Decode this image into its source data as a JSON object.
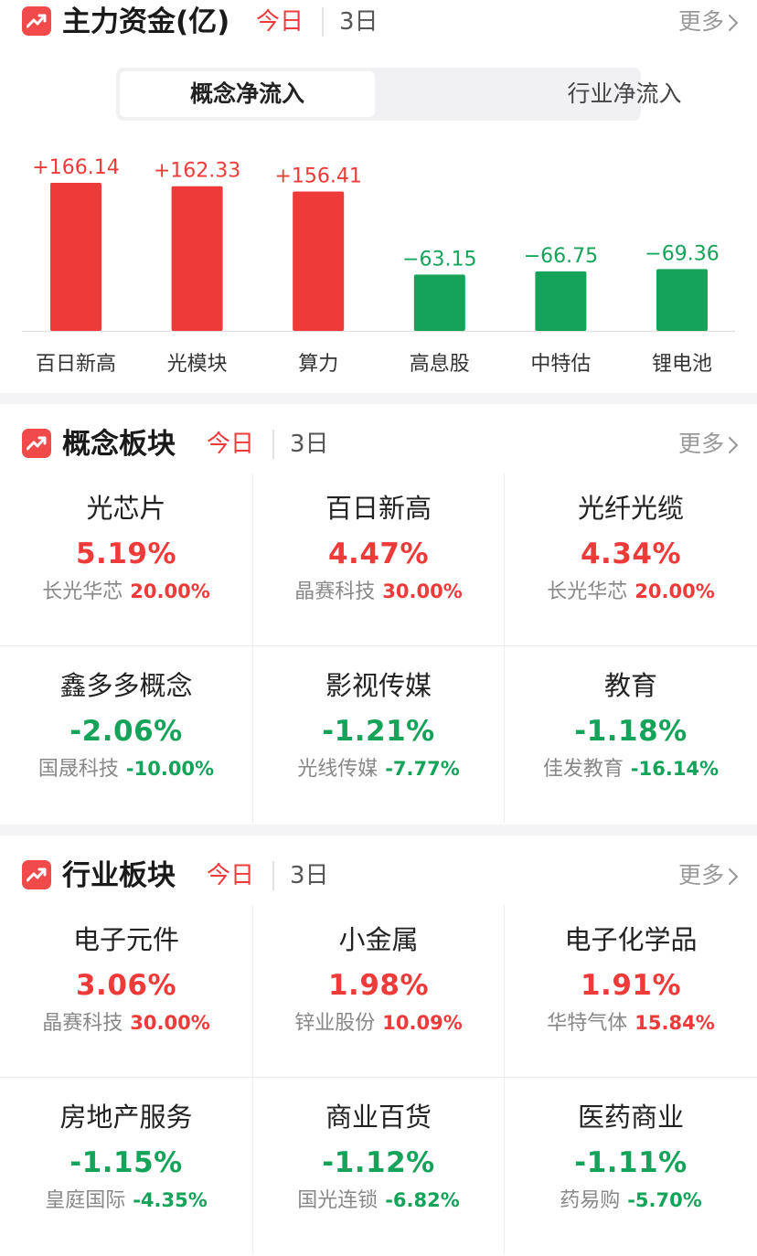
{
  "colors": {
    "up": "#ef3a3a",
    "down": "#15a35a",
    "accent": "#f04a4a"
  },
  "fund_flow": {
    "title": "主力资金(亿)",
    "tab_today": "今日",
    "tab_3d": "3日",
    "more": "更多",
    "icon": "trend-up-icon",
    "segment": {
      "active": "概念净流入",
      "inactive": "行业净流入"
    }
  },
  "chart_data": {
    "type": "bar",
    "categories": [
      "百日新高",
      "光模块",
      "算力",
      "高息股",
      "中特估",
      "锂电池"
    ],
    "values": [
      166.14,
      162.33,
      156.41,
      -63.15,
      -66.75,
      -69.36
    ],
    "labels": [
      "+166.14",
      "+162.33",
      "+156.41",
      "−63.15",
      "−66.75",
      "−69.36"
    ]
  },
  "concept": {
    "title": "概念板块",
    "tab_today": "今日",
    "tab_3d": "3日",
    "more": "更多",
    "icon": "trend-up-icon",
    "items": [
      {
        "name": "光芯片",
        "pct": "5.19%",
        "stock": "长光华芯",
        "chg": "20.00%",
        "dir": "up"
      },
      {
        "name": "百日新高",
        "pct": "4.47%",
        "stock": "晶赛科技",
        "chg": "30.00%",
        "dir": "up"
      },
      {
        "name": "光纤光缆",
        "pct": "4.34%",
        "stock": "长光华芯",
        "chg": "20.00%",
        "dir": "up"
      },
      {
        "name": "鑫多多概念",
        "pct": "-2.06%",
        "stock": "国晟科技",
        "chg": "-10.00%",
        "dir": "down"
      },
      {
        "name": "影视传媒",
        "pct": "-1.21%",
        "stock": "光线传媒",
        "chg": "-7.77%",
        "dir": "down"
      },
      {
        "name": "教育",
        "pct": "-1.18%",
        "stock": "佳发教育",
        "chg": "-16.14%",
        "dir": "down"
      }
    ]
  },
  "industry": {
    "title": "行业板块",
    "tab_today": "今日",
    "tab_3d": "3日",
    "more": "更多",
    "icon": "trend-up-icon",
    "items": [
      {
        "name": "电子元件",
        "pct": "3.06%",
        "stock": "晶赛科技",
        "chg": "30.00%",
        "dir": "up"
      },
      {
        "name": "小金属",
        "pct": "1.98%",
        "stock": "锌业股份",
        "chg": "10.09%",
        "dir": "up"
      },
      {
        "name": "电子化学品",
        "pct": "1.91%",
        "stock": "华特气体",
        "chg": "15.84%",
        "dir": "up"
      },
      {
        "name": "房地产服务",
        "pct": "-1.15%",
        "stock": "皇庭国际",
        "chg": "-4.35%",
        "dir": "down"
      },
      {
        "name": "商业百货",
        "pct": "-1.12%",
        "stock": "国光连锁",
        "chg": "-6.82%",
        "dir": "down"
      },
      {
        "name": "医药商业",
        "pct": "-1.11%",
        "stock": "药易购",
        "chg": "-5.70%",
        "dir": "down"
      }
    ]
  }
}
